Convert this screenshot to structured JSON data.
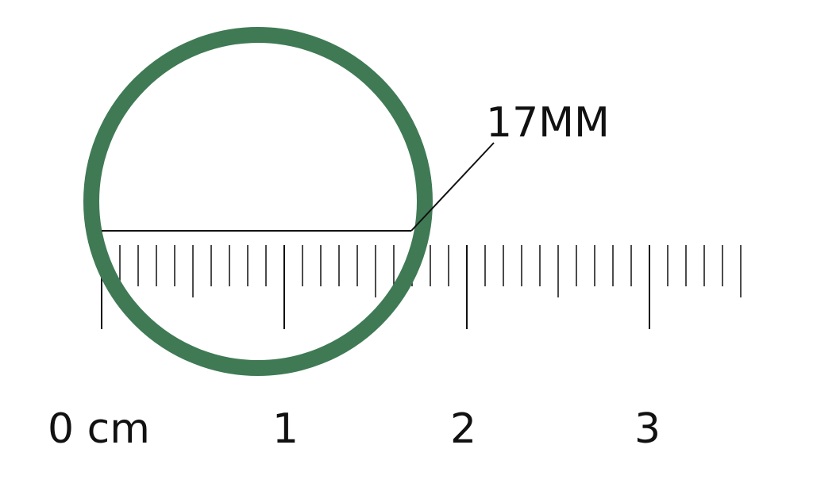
{
  "diagram": {
    "measurement_label": "17MM",
    "ruler": {
      "unit_label": "cm",
      "major_labels": [
        "0 cm",
        "1",
        "2",
        "3"
      ],
      "range_mm": [
        0,
        35
      ],
      "tick_step_mm": 1
    },
    "ring": {
      "diameter_mm": 17,
      "color": "#3f7a55"
    },
    "colors": {
      "ink": "#111111",
      "background": "#ffffff"
    }
  }
}
